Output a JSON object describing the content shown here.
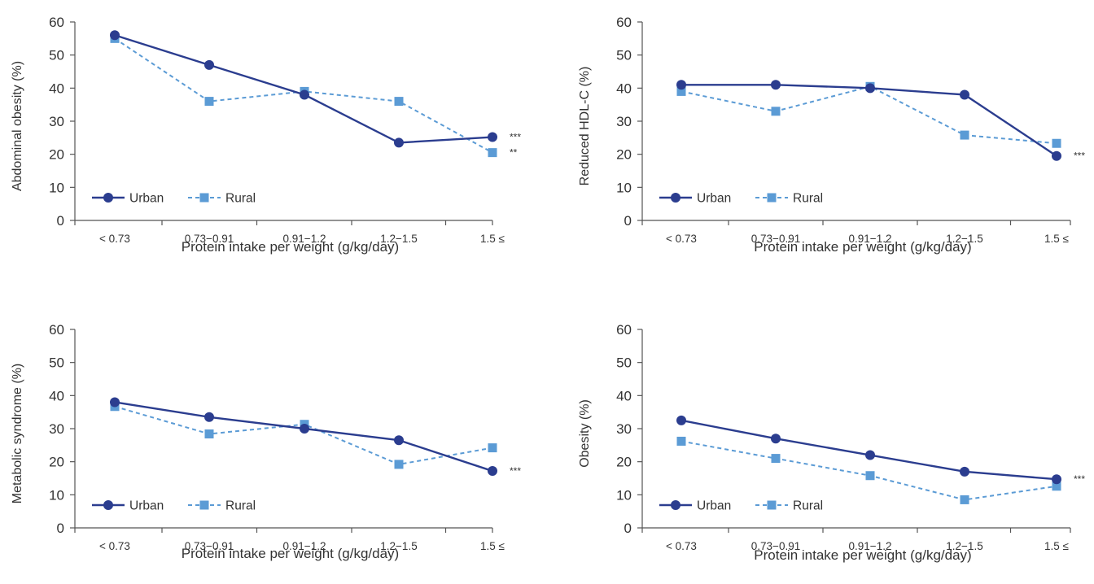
{
  "colors": {
    "urban": "#2b3d8f",
    "rural": "#5b9bd5",
    "axis": "#555555",
    "text": "#333333"
  },
  "chart_data": [
    {
      "type": "line",
      "title": "",
      "xlabel": "Protein intake per weight (g/kg/day)",
      "ylabel": "Abdominal obesity (%)",
      "ylim": [
        0,
        60
      ],
      "yticks": [
        0,
        10,
        20,
        30,
        40,
        50,
        60
      ],
      "grid": false,
      "legend_position": "bottom-left",
      "categories": [
        "< 0.73",
        "0.73−0.91",
        "0.91−1.2",
        "1.2−1.5",
        "1.5 ≤"
      ],
      "series": [
        {
          "name": "Urban",
          "values": [
            56,
            47,
            38,
            23.5,
            25.2
          ],
          "marker": "circle",
          "line": "solid"
        },
        {
          "name": "Rural",
          "values": [
            55,
            36,
            39,
            36,
            20.5
          ],
          "marker": "square",
          "line": "dashed"
        }
      ],
      "annotations": [
        {
          "text": "***",
          "series": "Urban"
        },
        {
          "text": "**",
          "series": "Rural"
        }
      ]
    },
    {
      "type": "line",
      "title": "",
      "xlabel": "Protein intake per weight (g/kg/day)",
      "ylabel": "Reduced HDL-C (%)",
      "ylim": [
        0,
        60
      ],
      "yticks": [
        0,
        10,
        20,
        30,
        40,
        50,
        60
      ],
      "grid": false,
      "legend_position": "bottom-left",
      "categories": [
        "< 0.73",
        "0.73−0.91",
        "0.91−1.2",
        "1.2−1.5",
        "1.5 ≤"
      ],
      "series": [
        {
          "name": "Urban",
          "values": [
            41,
            41,
            40,
            38,
            19.5
          ],
          "marker": "circle",
          "line": "solid"
        },
        {
          "name": "Rural",
          "values": [
            39,
            33,
            40.5,
            25.8,
            23.3
          ],
          "marker": "square",
          "line": "dashed"
        }
      ],
      "annotations": [
        {
          "text": "***",
          "series": "Urban"
        }
      ]
    },
    {
      "type": "line",
      "title": "",
      "xlabel": "Protein intake per weight (g/kg/day)",
      "ylabel": "Metabolic syndrome (%)",
      "ylim": [
        0,
        60
      ],
      "yticks": [
        0,
        10,
        20,
        30,
        40,
        50,
        60
      ],
      "grid": false,
      "legend_position": "bottom-left",
      "categories": [
        "< 0.73",
        "0.73−0.91",
        "0.91−1.2",
        "1.2−1.5",
        "1.5 ≤"
      ],
      "series": [
        {
          "name": "Urban",
          "values": [
            38,
            33.5,
            30,
            26.5,
            17.2
          ],
          "marker": "circle",
          "line": "solid"
        },
        {
          "name": "Rural",
          "values": [
            36.7,
            28.4,
            31.3,
            19.2,
            24.2
          ],
          "marker": "square",
          "line": "dashed"
        }
      ],
      "annotations": [
        {
          "text": "***",
          "series": "Urban"
        }
      ]
    },
    {
      "type": "line",
      "title": "",
      "xlabel": "Protein intake per weight (g/kg/day)",
      "ylabel": "Obesity (%)",
      "ylim": [
        0,
        60
      ],
      "yticks": [
        0,
        10,
        20,
        30,
        40,
        50,
        60
      ],
      "grid": false,
      "legend_position": "bottom-left",
      "categories": [
        "< 0.73",
        "0.73−0.91",
        "0.91−1.2",
        "1.2−1.5",
        "1.5 ≤"
      ],
      "series": [
        {
          "name": "Urban",
          "values": [
            32.5,
            27,
            22,
            17,
            14.7
          ],
          "marker": "circle",
          "line": "solid"
        },
        {
          "name": "Rural",
          "values": [
            26.2,
            21,
            15.8,
            8.5,
            12.6
          ],
          "marker": "square",
          "line": "dashed"
        }
      ],
      "annotations": [
        {
          "text": "***",
          "series": "Urban"
        }
      ]
    }
  ]
}
